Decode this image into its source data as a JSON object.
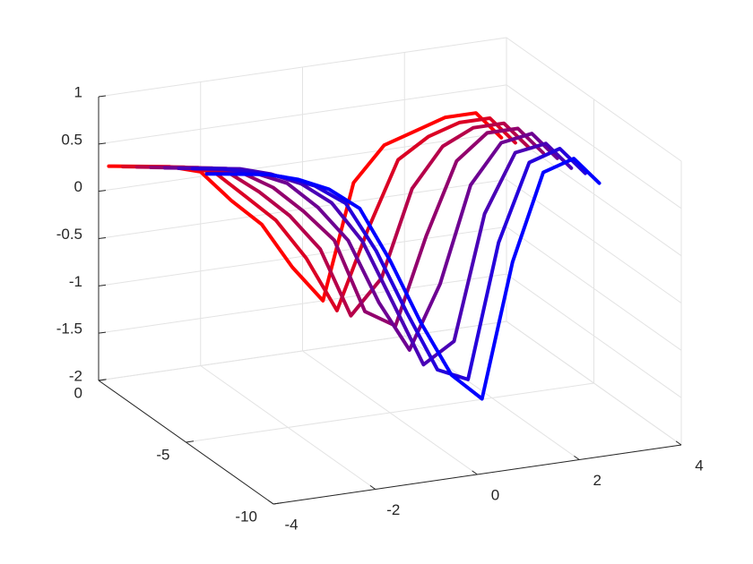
{
  "chart_data": {
    "type": "line3d",
    "x": [
      -3.8,
      -3.2,
      -2.6,
      -2,
      -1.4,
      -0.8,
      -0.2,
      0.4,
      1,
      1.6,
      2.2,
      2.8,
      3.4,
      3.9
    ],
    "series": [
      {
        "y": 0,
        "color": "#ff0000",
        "values": [
          0.25,
          0.2,
          0.15,
          0.05,
          -0.3,
          -0.6,
          -1.1,
          -1.5,
          -0.3,
          0.05,
          0.15,
          0.25,
          0.25,
          -0.05
        ]
      },
      {
        "y": -0.8,
        "color": "#db0024",
        "values": [
          0.35,
          0.3,
          0.25,
          0.15,
          -0.15,
          -0.45,
          -0.9,
          -1.5,
          -0.7,
          0.0,
          0.2,
          0.3,
          0.3,
          0.0
        ]
      },
      {
        "y": -1.6,
        "color": "#b60049",
        "values": [
          0.45,
          0.4,
          0.35,
          0.25,
          0.0,
          -0.3,
          -0.7,
          -1.45,
          -1.1,
          -0.2,
          0.2,
          0.35,
          0.35,
          0.05
        ]
      },
      {
        "y": -2.4,
        "color": "#92006d",
        "values": [
          0.55,
          0.5,
          0.45,
          0.35,
          0.15,
          -0.15,
          -0.5,
          -1.3,
          -1.5,
          -0.6,
          0.15,
          0.4,
          0.4,
          0.1
        ]
      },
      {
        "y": -3.2,
        "color": "#6d0092",
        "values": [
          0.65,
          0.6,
          0.55,
          0.45,
          0.3,
          0.0,
          -0.4,
          -1.1,
          -1.65,
          -1.0,
          0.0,
          0.4,
          0.45,
          0.15
        ]
      },
      {
        "y": -4.0,
        "color": "#4900b6",
        "values": [
          0.75,
          0.7,
          0.65,
          0.55,
          0.4,
          0.15,
          -0.3,
          -1.0,
          -1.7,
          -1.5,
          -0.2,
          0.4,
          0.45,
          0.15
        ]
      },
      {
        "y": -4.8,
        "color": "#2400db",
        "values": [
          0.85,
          0.8,
          0.72,
          0.62,
          0.48,
          0.25,
          -0.3,
          -1.0,
          -1.65,
          -1.8,
          -0.4,
          0.4,
          0.5,
          0.2
        ]
      },
      {
        "y": -5.6,
        "color": "#0000ff",
        "values": [
          0.9,
          0.85,
          0.8,
          0.7,
          0.55,
          0.3,
          -0.3,
          -1.0,
          -1.6,
          -1.9,
          -0.5,
          0.4,
          0.5,
          0.2
        ]
      }
    ],
    "xlim": [
      -4,
      4
    ],
    "xticks": [
      -4,
      -2,
      0,
      2,
      4
    ],
    "ylim": [
      -10,
      0
    ],
    "yticks": [
      -10,
      -5,
      0
    ],
    "zlim": [
      -2,
      1
    ],
    "zticks": [
      -2,
      -1.5,
      -1,
      -0.5,
      0,
      0.5,
      1
    ],
    "grid": true
  }
}
